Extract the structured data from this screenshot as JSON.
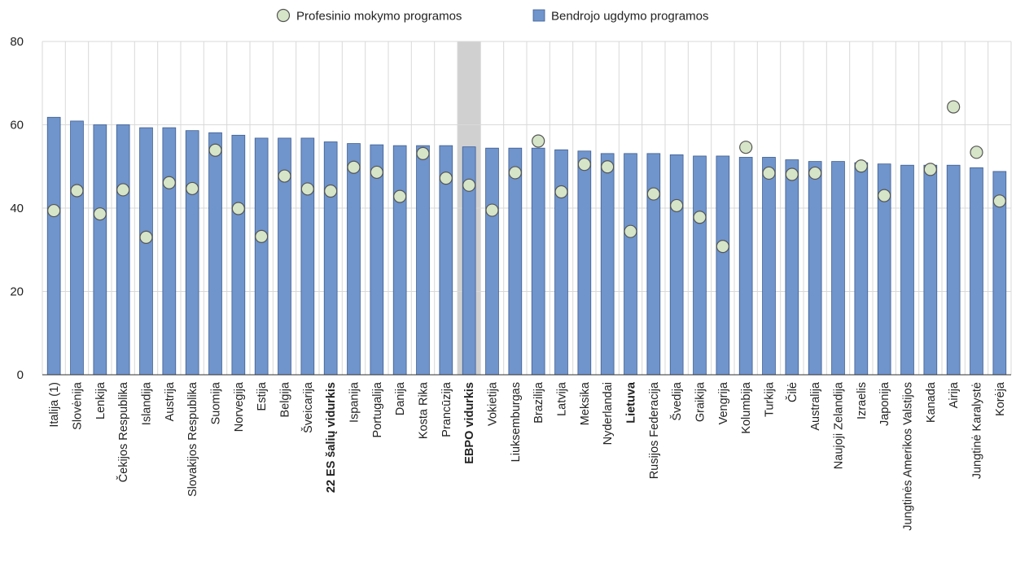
{
  "chart_data": {
    "type": "bar",
    "ylim": [
      0,
      80
    ],
    "yticks": [
      0,
      20,
      40,
      60,
      80
    ],
    "grid": true,
    "legend_position": "top-center",
    "highlight_category": "EBPO vidurkis",
    "bold_categories": [
      "22 ES šalių vidurkis",
      "EBPO vidurkis",
      "Lietuva"
    ],
    "colors": {
      "bar": "#7094cc",
      "bar_stroke": "#3d5d8f",
      "marker_fill": "#d6e5c8",
      "marker_stroke": "#555555",
      "grid": "#d9d9d9",
      "highlight": "#d0d0d0",
      "axis": "#333333"
    },
    "legend": [
      {
        "label": "Profesinio mokymo programos",
        "kind": "marker",
        "color": "#d6e5c8"
      },
      {
        "label": "Bendrojo ugdymo programos",
        "kind": "bar",
        "color": "#7094cc"
      }
    ],
    "categories": [
      "Italija (1)",
      "Slovėnija",
      "Lenkija",
      "Čekijos Respublika",
      "Islandija",
      "Austrija",
      "Slovakijos Respublika",
      "Suomija",
      "Norvegija",
      "Estija",
      "Belgija",
      "Šveicarija",
      "22 ES šalių vidurkis",
      "Ispanija",
      "Portugalija",
      "Danija",
      "Kosta Rika",
      "Prancūzija",
      "EBPO vidurkis",
      "Vokietija",
      "Liuksemburgas",
      "Brazilija",
      "Latvija",
      "Meksika",
      "Nyderlandai",
      "Lietuva",
      "Rusijos Federacija",
      "Švedija",
      "Graikija",
      "Vengrija",
      "Kolumbija",
      "Turkija",
      "Čilė",
      "Australija",
      "Naujoji Zelandija",
      "Izraelis",
      "Japonija",
      "Jungtinės Amerikos Valstijos",
      "Kanada",
      "Airija",
      "Jungtinė Karalystė",
      "Korėja"
    ],
    "series": [
      {
        "name": "Bendrojo ugdymo programos",
        "kind": "bar",
        "values": [
          61.8,
          60.9,
          60.0,
          60.0,
          59.3,
          59.3,
          58.6,
          58.1,
          57.5,
          56.8,
          56.8,
          56.8,
          55.9,
          55.5,
          55.2,
          55.0,
          55.0,
          55.0,
          54.7,
          54.4,
          54.4,
          54.4,
          54.0,
          53.7,
          53.1,
          53.1,
          53.1,
          52.8,
          52.5,
          52.5,
          52.2,
          52.2,
          51.6,
          51.2,
          51.2,
          50.9,
          50.6,
          50.3,
          50.3,
          50.3,
          49.7,
          48.8
        ]
      },
      {
        "name": "Profesinio mokymo programos",
        "kind": "marker",
        "values": [
          39.4,
          44.2,
          38.6,
          44.4,
          33.0,
          46.1,
          44.7,
          53.9,
          39.9,
          33.2,
          47.7,
          44.6,
          44.1,
          49.8,
          48.6,
          42.8,
          53.1,
          47.2,
          45.5,
          39.5,
          48.5,
          56.1,
          43.9,
          50.5,
          49.9,
          34.4,
          43.4,
          40.6,
          37.8,
          30.8,
          54.6,
          48.4,
          48.1,
          48.4,
          null,
          50.1,
          43.0,
          null,
          49.3,
          64.3,
          53.4,
          41.7
        ]
      }
    ]
  }
}
